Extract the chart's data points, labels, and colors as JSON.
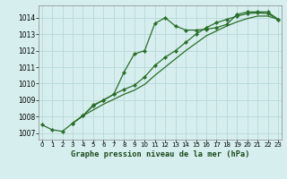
{
  "line1_x": [
    0,
    1,
    2,
    3,
    4,
    5,
    6,
    7,
    8,
    9,
    10,
    11,
    12,
    13,
    14,
    15,
    16,
    17,
    18,
    19,
    20,
    21,
    22,
    23
  ],
  "line1_y": [
    1007.5,
    1007.2,
    1007.1,
    1007.6,
    1008.05,
    1008.7,
    1009.0,
    1009.35,
    1010.7,
    1011.8,
    1012.0,
    1013.65,
    1014.0,
    1013.5,
    1013.25,
    1013.25,
    1013.3,
    1013.4,
    1013.6,
    1014.2,
    1014.35,
    1014.35,
    1014.35,
    1013.9
  ],
  "line2_x": [
    3,
    4,
    5,
    6,
    7,
    8,
    9,
    10,
    11,
    12,
    13,
    14,
    15,
    16,
    17,
    18,
    19,
    20,
    21,
    22,
    23
  ],
  "line2_y": [
    1007.6,
    1008.05,
    1008.65,
    1009.0,
    1009.35,
    1009.65,
    1009.9,
    1010.4,
    1011.1,
    1011.6,
    1012.0,
    1012.5,
    1013.0,
    1013.4,
    1013.7,
    1013.9,
    1014.1,
    1014.25,
    1014.3,
    1014.25,
    1013.9
  ],
  "line3_x": [
    3,
    4,
    5,
    6,
    7,
    8,
    9,
    10,
    11,
    12,
    13,
    14,
    15,
    16,
    17,
    18,
    19,
    20,
    21,
    22,
    23
  ],
  "line3_y": [
    1007.6,
    1008.05,
    1008.4,
    1008.75,
    1009.05,
    1009.35,
    1009.6,
    1009.95,
    1010.5,
    1011.0,
    1011.5,
    1012.0,
    1012.45,
    1012.9,
    1013.2,
    1013.5,
    1013.75,
    1013.95,
    1014.1,
    1014.1,
    1013.9
  ],
  "bg_color": "#d6eeee",
  "grid_color": "#b8d8d8",
  "line_color": "#2a6e2a",
  "xlabel": "Graphe pression niveau de la mer (hPa)",
  "ylim": [
    1006.6,
    1014.75
  ],
  "xlim": [
    -0.3,
    23.3
  ],
  "yticks": [
    1007,
    1008,
    1009,
    1010,
    1011,
    1012,
    1013,
    1014
  ],
  "xticks": [
    0,
    1,
    2,
    3,
    4,
    5,
    6,
    7,
    8,
    9,
    10,
    11,
    12,
    13,
    14,
    15,
    16,
    17,
    18,
    19,
    20,
    21,
    22,
    23
  ],
  "marker": "D",
  "markersize": 2.2,
  "linewidth": 0.9
}
